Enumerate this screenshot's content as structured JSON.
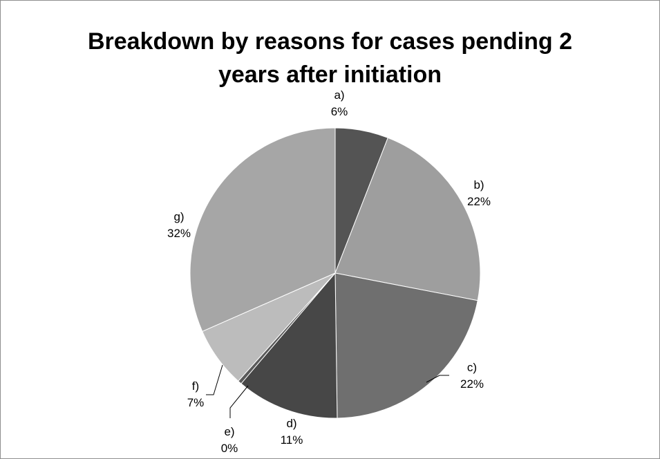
{
  "chart_data": {
    "type": "pie",
    "title_lines": [
      "Breakdown by reasons for cases pending 2",
      "years after initiation"
    ],
    "categories": [
      "a)",
      "b)",
      "c)",
      "d)",
      "e)",
      "f)",
      "g)"
    ],
    "values": [
      6,
      22,
      22,
      11,
      0,
      7,
      32
    ],
    "labels": [
      {
        "name": "a)",
        "pct": "6%"
      },
      {
        "name": "b)",
        "pct": "22%"
      },
      {
        "name": "c)",
        "pct": "22%"
      },
      {
        "name": "d)",
        "pct": "11%"
      },
      {
        "name": "e)",
        "pct": "0%"
      },
      {
        "name": "f)",
        "pct": "7%"
      },
      {
        "name": "g)",
        "pct": "32%"
      }
    ],
    "colors": [
      "#545454",
      "#9e9e9e",
      "#6f6f6f",
      "#474747",
      "#5a5a5a",
      "#bcbcbc",
      "#a6a6a6"
    ],
    "legend": "none"
  }
}
